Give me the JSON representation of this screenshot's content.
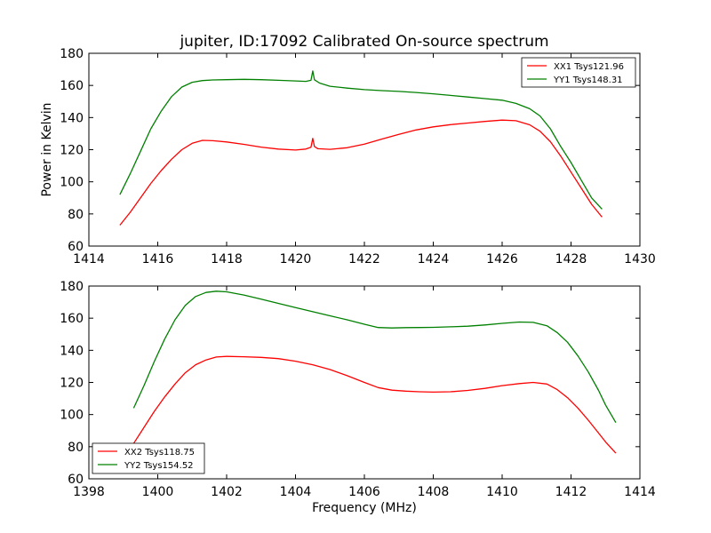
{
  "figure_title": "jupiter, ID:17092 Calibrated On-source spectrum",
  "chart_data": [
    {
      "type": "line",
      "title": "jupiter, ID:17092 Calibrated On-source spectrum",
      "xlabel": "",
      "ylabel": "Power in Kelvin",
      "xlim": [
        1414,
        1430
      ],
      "ylim": [
        60,
        180
      ],
      "xticks": [
        "1414",
        "1416",
        "1418",
        "1420",
        "1422",
        "1424",
        "1426",
        "1428",
        "1430"
      ],
      "yticks": [
        "60",
        "80",
        "100",
        "120",
        "140",
        "160",
        "180"
      ],
      "grid": false,
      "legend_position": "upper right",
      "series": [
        {
          "name": "XX1 Tsys121.96",
          "color": "#ff0000",
          "x": [
            1414.9,
            1415.2,
            1415.5,
            1415.8,
            1416.1,
            1416.4,
            1416.7,
            1417.0,
            1417.3,
            1417.6,
            1418.0,
            1418.5,
            1419.0,
            1419.5,
            1420.0,
            1420.3,
            1420.45,
            1420.5,
            1420.55,
            1420.65,
            1421.0,
            1421.5,
            1422.0,
            1422.5,
            1423.0,
            1423.5,
            1424.0,
            1424.5,
            1425.0,
            1425.5,
            1426.0,
            1426.4,
            1426.8,
            1427.1,
            1427.4,
            1427.7,
            1428.0,
            1428.3,
            1428.6,
            1428.9
          ],
          "y": [
            73,
            81,
            90,
            99,
            107,
            114,
            120,
            124,
            125.8,
            125.6,
            124.8,
            123.3,
            121.6,
            120.4,
            119.8,
            120.4,
            121.5,
            127,
            122,
            120.6,
            120.2,
            121.2,
            123.5,
            126.6,
            129.5,
            132.3,
            134.2,
            135.6,
            136.6,
            137.6,
            138.4,
            138.0,
            135.5,
            131.5,
            125,
            116,
            106,
            96,
            86,
            78
          ]
        },
        {
          "name": "YY1 Tsys148.31",
          "color": "#008000",
          "x": [
            1414.9,
            1415.2,
            1415.5,
            1415.8,
            1416.1,
            1416.4,
            1416.7,
            1417.0,
            1417.3,
            1417.6,
            1418.0,
            1418.5,
            1419.0,
            1419.5,
            1420.0,
            1420.3,
            1420.45,
            1420.5,
            1420.55,
            1420.7,
            1421.0,
            1421.5,
            1422.0,
            1422.5,
            1423.0,
            1423.5,
            1424.0,
            1424.5,
            1425.0,
            1425.5,
            1426.0,
            1426.4,
            1426.8,
            1427.1,
            1427.4,
            1427.7,
            1428.0,
            1428.3,
            1428.6,
            1428.9
          ],
          "y": [
            92,
            105,
            119,
            133,
            144,
            153,
            159,
            162,
            163,
            163.4,
            163.6,
            163.8,
            163.6,
            163.2,
            162.8,
            162.5,
            163.2,
            169,
            163.5,
            161.5,
            159.5,
            158.3,
            157.4,
            156.8,
            156.3,
            155.6,
            154.8,
            153.8,
            152.8,
            151.8,
            150.8,
            148.8,
            145.5,
            141,
            133,
            122,
            112,
            101,
            90,
            83
          ]
        }
      ]
    },
    {
      "type": "line",
      "title": "",
      "xlabel": "Frequency (MHz)",
      "ylabel": "",
      "xlim": [
        1398,
        1414
      ],
      "ylim": [
        60,
        180
      ],
      "xticks": [
        "1398",
        "1400",
        "1402",
        "1404",
        "1406",
        "1408",
        "1410",
        "1412",
        "1414"
      ],
      "yticks": [
        "60",
        "80",
        "100",
        "120",
        "140",
        "160",
        "180"
      ],
      "grid": false,
      "legend_position": "lower left",
      "series": [
        {
          "name": "XX2 Tsys118.75",
          "color": "#ff0000",
          "x": [
            1399.3,
            1399.6,
            1399.9,
            1400.2,
            1400.5,
            1400.8,
            1401.1,
            1401.4,
            1401.7,
            1402.0,
            1402.5,
            1403.0,
            1403.5,
            1404.0,
            1404.5,
            1405.0,
            1405.5,
            1406.0,
            1406.4,
            1406.8,
            1407.2,
            1407.6,
            1408.0,
            1408.5,
            1409.0,
            1409.5,
            1410.0,
            1410.5,
            1410.9,
            1411.3,
            1411.6,
            1411.9,
            1412.2,
            1412.5,
            1412.8,
            1413.0,
            1413.3
          ],
          "y": [
            82,
            92,
            102,
            111,
            119,
            126,
            131,
            134,
            135.8,
            136.2,
            136,
            135.6,
            134.8,
            133.2,
            131,
            128,
            124.2,
            120,
            116.8,
            115.2,
            114.6,
            114.2,
            114.0,
            114.2,
            115.0,
            116.3,
            118.0,
            119.3,
            120.0,
            119.0,
            115.5,
            110.5,
            104,
            96.5,
            88.5,
            83,
            76
          ]
        },
        {
          "name": "YY2 Tsys154.52",
          "color": "#008000",
          "x": [
            1399.3,
            1399.6,
            1399.9,
            1400.2,
            1400.5,
            1400.8,
            1401.1,
            1401.4,
            1401.7,
            1402.0,
            1402.5,
            1403.0,
            1403.5,
            1404.0,
            1404.5,
            1405.0,
            1405.5,
            1406.0,
            1406.4,
            1406.8,
            1407.2,
            1407.6,
            1408.0,
            1408.5,
            1409.0,
            1409.5,
            1410.0,
            1410.5,
            1410.9,
            1411.3,
            1411.6,
            1411.9,
            1412.2,
            1412.5,
            1412.8,
            1413.0,
            1413.3
          ],
          "y": [
            104,
            118,
            133,
            147,
            159,
            168,
            173.5,
            176,
            176.8,
            176.4,
            174.4,
            171.8,
            169.2,
            166.6,
            164,
            161.5,
            159,
            156.2,
            154.2,
            153.9,
            154.1,
            154.2,
            154.3,
            154.6,
            155.0,
            155.8,
            156.8,
            157.6,
            157.4,
            155.3,
            151,
            145,
            136.5,
            126.5,
            115,
            106,
            95
          ]
        }
      ]
    }
  ]
}
